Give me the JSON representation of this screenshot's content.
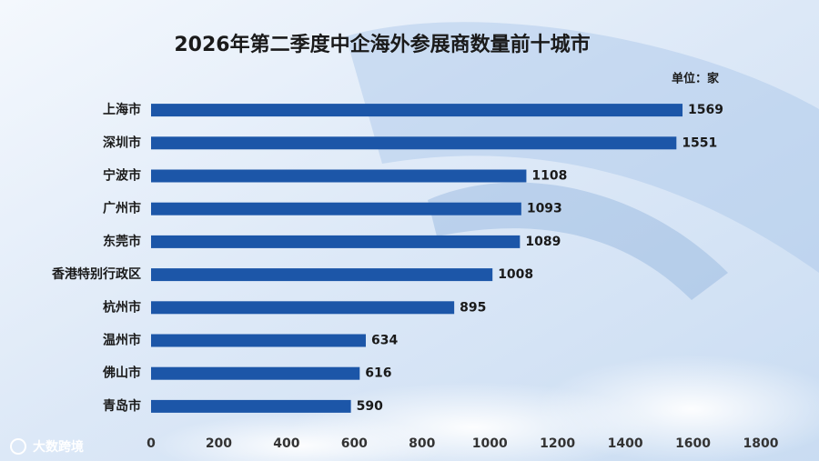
{
  "chart_data": {
    "type": "bar",
    "orientation": "horizontal",
    "title": "2026年第二季度中企海外参展商数量前十城市",
    "unit": "单位：家",
    "categories": [
      "上海市",
      "深圳市",
      "宁波市",
      "广州市",
      "东莞市",
      "香港特别行政区",
      "杭州市",
      "温州市",
      "佛山市",
      "青岛市"
    ],
    "values": [
      1569,
      1551,
      1108,
      1093,
      1089,
      1008,
      895,
      634,
      616,
      590
    ],
    "color": "#1c56a8",
    "xlim": [
      0,
      1800
    ],
    "xticks": [
      0,
      200,
      400,
      600,
      800,
      1000,
      1200,
      1400,
      1600,
      1800
    ],
    "watermark": "大数跨境"
  }
}
